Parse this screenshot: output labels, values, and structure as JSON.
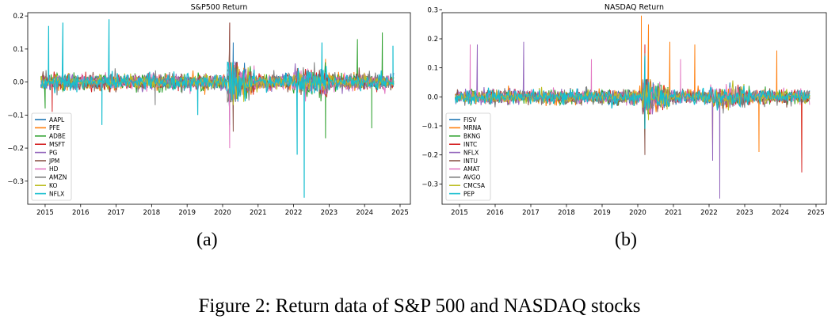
{
  "figure_caption": "Figure 2: Return data of S&P 500 and NASDAQ stocks",
  "subfigure_labels": [
    "(a)",
    "(b)"
  ],
  "chart_data": [
    {
      "type": "line",
      "title": "S&P500 Return",
      "xlabel": "",
      "ylabel": "",
      "x_range": [
        2014.8,
        2025.0
      ],
      "x_ticks": [
        2015,
        2016,
        2017,
        2018,
        2019,
        2020,
        2021,
        2022,
        2023,
        2024,
        2025
      ],
      "x_tick_labels": [
        "2015",
        "2016",
        "2017",
        "2018",
        "2019",
        "2020",
        "2021",
        "2022",
        "2023",
        "2024",
        "2025"
      ],
      "ylim": [
        -0.37,
        0.21
      ],
      "y_ticks": [
        -0.3,
        -0.2,
        -0.1,
        0.0,
        0.1,
        0.2
      ],
      "y_tick_labels": [
        "−0.3",
        "−0.2",
        "−0.1",
        "0.0",
        "0.1",
        "0.2"
      ],
      "grid": false,
      "legend_position": "lower-left",
      "series": [
        {
          "name": "AAPL",
          "color": "#1f77b4",
          "spikes": [
            [
              2020.2,
              -0.13
            ],
            [
              2020.3,
              0.12
            ]
          ]
        },
        {
          "name": "PFE",
          "color": "#ff7f0e",
          "spikes": [
            [
              2022.9,
              0.07
            ]
          ]
        },
        {
          "name": "ADBE",
          "color": "#2ca02c",
          "spikes": [
            [
              2015.0,
              -0.08
            ],
            [
              2022.9,
              -0.17
            ],
            [
              2024.2,
              -0.14
            ],
            [
              2024.5,
              0.15
            ],
            [
              2020.2,
              0.12
            ],
            [
              2023.8,
              0.13
            ]
          ]
        },
        {
          "name": "MSFT",
          "color": "#d62728",
          "spikes": [
            [
              2015.2,
              -0.09
            ],
            [
              2020.2,
              0.18
            ]
          ]
        },
        {
          "name": "PG",
          "color": "#9467bd",
          "spikes": [
            [
              2020.2,
              -0.09
            ]
          ]
        },
        {
          "name": "JPM",
          "color": "#8c564b",
          "spikes": [
            [
              2020.2,
              0.18
            ],
            [
              2020.3,
              -0.15
            ]
          ]
        },
        {
          "name": "HD",
          "color": "#e377c2",
          "spikes": [
            [
              2020.2,
              -0.2
            ]
          ]
        },
        {
          "name": "AMZN",
          "color": "#7f7f7f",
          "spikes": [
            [
              2018.1,
              -0.07
            ]
          ]
        },
        {
          "name": "KO",
          "color": "#bcbd22",
          "spikes": [
            [
              2020.3,
              -0.07
            ]
          ]
        },
        {
          "name": "NFLX",
          "color": "#17becf",
          "spikes": [
            [
              2015.1,
              0.17
            ],
            [
              2015.5,
              0.18
            ],
            [
              2016.6,
              -0.13
            ],
            [
              2016.8,
              0.19
            ],
            [
              2019.3,
              -0.1
            ],
            [
              2022.3,
              -0.35
            ],
            [
              2022.1,
              -0.22
            ],
            [
              2022.8,
              0.12
            ],
            [
              2024.8,
              0.11
            ]
          ]
        }
      ]
    },
    {
      "type": "line",
      "title": "NASDAQ Return",
      "xlabel": "",
      "ylabel": "",
      "x_range": [
        2014.8,
        2025.0
      ],
      "x_ticks": [
        2015,
        2016,
        2017,
        2018,
        2019,
        2020,
        2021,
        2022,
        2023,
        2024,
        2025
      ],
      "x_tick_labels": [
        "2015",
        "2016",
        "2017",
        "2018",
        "2019",
        "2020",
        "2021",
        "2022",
        "2023",
        "2024",
        "2025"
      ],
      "ylim": [
        -0.37,
        0.29
      ],
      "y_ticks": [
        -0.3,
        -0.2,
        -0.1,
        0.0,
        0.1,
        0.2,
        0.3
      ],
      "y_tick_labels": [
        "−0.3",
        "−0.2",
        "−0.1",
        "0.0",
        "0.1",
        "0.2",
        "0.3"
      ],
      "grid": false,
      "legend_position": "lower-left",
      "series": [
        {
          "name": "FISV",
          "color": "#1f77b4",
          "spikes": [
            [
              2020.2,
              -0.1
            ]
          ]
        },
        {
          "name": "MRNA",
          "color": "#ff7f0e",
          "spikes": [
            [
              2020.1,
              0.28
            ],
            [
              2020.3,
              0.25
            ],
            [
              2020.9,
              0.19
            ],
            [
              2021.6,
              0.18
            ],
            [
              2022.1,
              -0.17
            ],
            [
              2023.4,
              -0.19
            ],
            [
              2024.6,
              -0.25
            ],
            [
              2023.9,
              0.16
            ]
          ]
        },
        {
          "name": "BKNG",
          "color": "#2ca02c",
          "spikes": [
            [
              2020.2,
              -0.14
            ]
          ]
        },
        {
          "name": "INTC",
          "color": "#d62728",
          "spikes": [
            [
              2020.2,
              0.18
            ],
            [
              2024.6,
              -0.26
            ]
          ]
        },
        {
          "name": "NFLX",
          "color": "#9467bd",
          "spikes": [
            [
              2015.5,
              0.18
            ],
            [
              2016.8,
              0.19
            ],
            [
              2022.3,
              -0.35
            ],
            [
              2022.1,
              -0.22
            ]
          ]
        },
        {
          "name": "INTU",
          "color": "#8c564b",
          "spikes": [
            [
              2020.2,
              -0.2
            ]
          ]
        },
        {
          "name": "AMAT",
          "color": "#e377c2",
          "spikes": [
            [
              2015.3,
              0.18
            ],
            [
              2018.7,
              0.13
            ],
            [
              2021.2,
              0.13
            ]
          ]
        },
        {
          "name": "AVGO",
          "color": "#7f7f7f",
          "spikes": [
            [
              2020.2,
              0.15
            ]
          ]
        },
        {
          "name": "CMCSA",
          "color": "#bcbd22",
          "spikes": [
            [
              2020.3,
              -0.08
            ]
          ]
        },
        {
          "name": "PEP",
          "color": "#17becf",
          "spikes": [
            [
              2020.2,
              0.14
            ],
            [
              2020.2,
              -0.11
            ]
          ]
        }
      ]
    }
  ]
}
